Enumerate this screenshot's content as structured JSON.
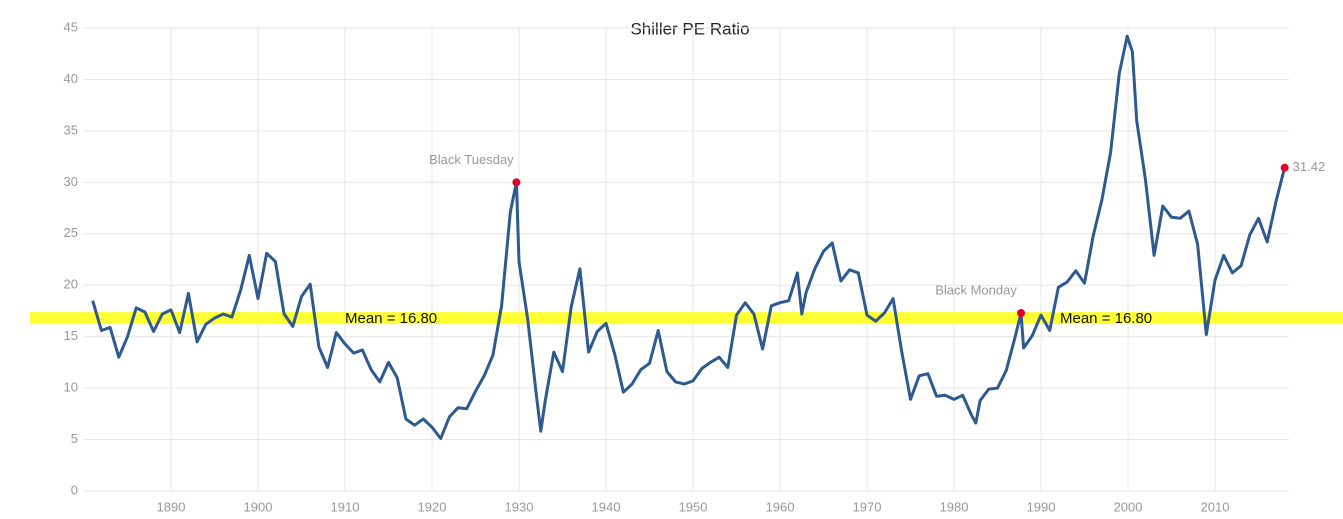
{
  "chart_data": {
    "type": "line",
    "title": "Shiller PE Ratio",
    "x": [
      1881,
      1882,
      1883,
      1884,
      1885,
      1886,
      1887,
      1888,
      1889,
      1890,
      1891,
      1892,
      1893,
      1894,
      1895,
      1896,
      1897,
      1898,
      1899,
      1900,
      1901,
      1902,
      1903,
      1904,
      1905,
      1906,
      1907,
      1908,
      1909,
      1910,
      1911,
      1912,
      1913,
      1914,
      1915,
      1916,
      1917,
      1918,
      1919,
      1920,
      1921,
      1922,
      1923,
      1924,
      1925,
      1926,
      1927,
      1928,
      1929,
      1929.7,
      1930,
      1931,
      1932,
      1932.5,
      1933,
      1934,
      1935,
      1936,
      1937,
      1938,
      1939,
      1940,
      1941,
      1942,
      1943,
      1944,
      1945,
      1946,
      1947,
      1948,
      1949,
      1950,
      1951,
      1952,
      1953,
      1954,
      1955,
      1956,
      1957,
      1958,
      1959,
      1960,
      1961,
      1962,
      1962.5,
      1963,
      1964,
      1965,
      1966,
      1967,
      1968,
      1969,
      1970,
      1971,
      1972,
      1973,
      1974,
      1975,
      1976,
      1977,
      1978,
      1979,
      1980,
      1981,
      1982,
      1982.5,
      1983,
      1984,
      1985,
      1986,
      1987,
      1987.7,
      1988,
      1989,
      1990,
      1991,
      1992,
      1993,
      1994,
      1995,
      1996,
      1997,
      1998,
      1999,
      1999.9,
      2000.5,
      2001,
      2002,
      2003,
      2004,
      2005,
      2006,
      2007,
      2008,
      2009,
      2010,
      2011,
      2012,
      2013,
      2014,
      2015,
      2016,
      2017,
      2018
    ],
    "series": [
      {
        "name": "Shiller PE Ratio",
        "color": "#2e5a8f",
        "values": [
          18.5,
          15.6,
          15.9,
          13.0,
          15.0,
          17.8,
          17.4,
          15.5,
          17.2,
          17.6,
          15.4,
          19.2,
          14.5,
          16.2,
          16.8,
          17.2,
          16.9,
          19.5,
          22.9,
          18.7,
          23.1,
          22.3,
          17.2,
          16.0,
          18.9,
          20.1,
          14.0,
          12.0,
          15.4,
          14.3,
          13.4,
          13.7,
          11.8,
          10.6,
          12.5,
          11.0,
          7.0,
          6.4,
          7.0,
          6.2,
          5.1,
          7.2,
          8.1,
          8.0,
          9.7,
          11.2,
          13.2,
          18.0,
          27.1,
          30.0,
          22.3,
          16.7,
          9.3,
          5.8,
          8.7,
          13.5,
          11.6,
          17.9,
          21.6,
          13.5,
          15.5,
          16.3,
          13.3,
          9.6,
          10.4,
          11.8,
          12.4,
          15.6,
          11.6,
          10.6,
          10.4,
          10.7,
          11.9,
          12.5,
          13.0,
          12.0,
          17.1,
          18.3,
          17.2,
          13.8,
          18.0,
          18.3,
          18.5,
          21.2,
          17.2,
          19.3,
          21.6,
          23.3,
          24.1,
          20.4,
          21.5,
          21.2,
          17.1,
          16.5,
          17.3,
          18.7,
          13.5,
          8.9,
          11.2,
          11.4,
          9.2,
          9.3,
          8.9,
          9.3,
          7.4,
          6.6,
          8.8,
          9.9,
          10.0,
          11.7,
          14.9,
          17.3,
          13.9,
          15.1,
          17.1,
          15.6,
          19.8,
          20.3,
          21.4,
          20.2,
          24.8,
          28.3,
          32.9,
          40.6,
          44.2,
          42.7,
          36.0,
          30.3,
          22.9,
          27.7,
          26.6,
          26.5,
          27.2,
          24.0,
          15.2,
          20.5,
          22.9,
          21.2,
          21.9,
          24.9,
          26.5,
          24.2,
          28.1,
          31.42
        ]
      }
    ],
    "xlim": [
      1880,
      2018.5
    ],
    "xticks": [
      1890,
      1900,
      1910,
      1920,
      1930,
      1940,
      1950,
      1960,
      1970,
      1980,
      1990,
      2000,
      2010
    ],
    "ylim": [
      0,
      45
    ],
    "yticks": [
      0,
      5,
      10,
      15,
      20,
      25,
      30,
      35,
      40,
      45
    ],
    "grid": true,
    "mean_line": {
      "value": 16.8,
      "label": "Mean = 16.80",
      "color": "#ffff33"
    },
    "annotations": [
      {
        "text": "Black Tuesday",
        "x": 1929.7,
        "y": 30.0
      },
      {
        "text": "Black Monday",
        "x": 1987.7,
        "y": 17.3
      }
    ],
    "marker_color": "#e8002a"
  }
}
